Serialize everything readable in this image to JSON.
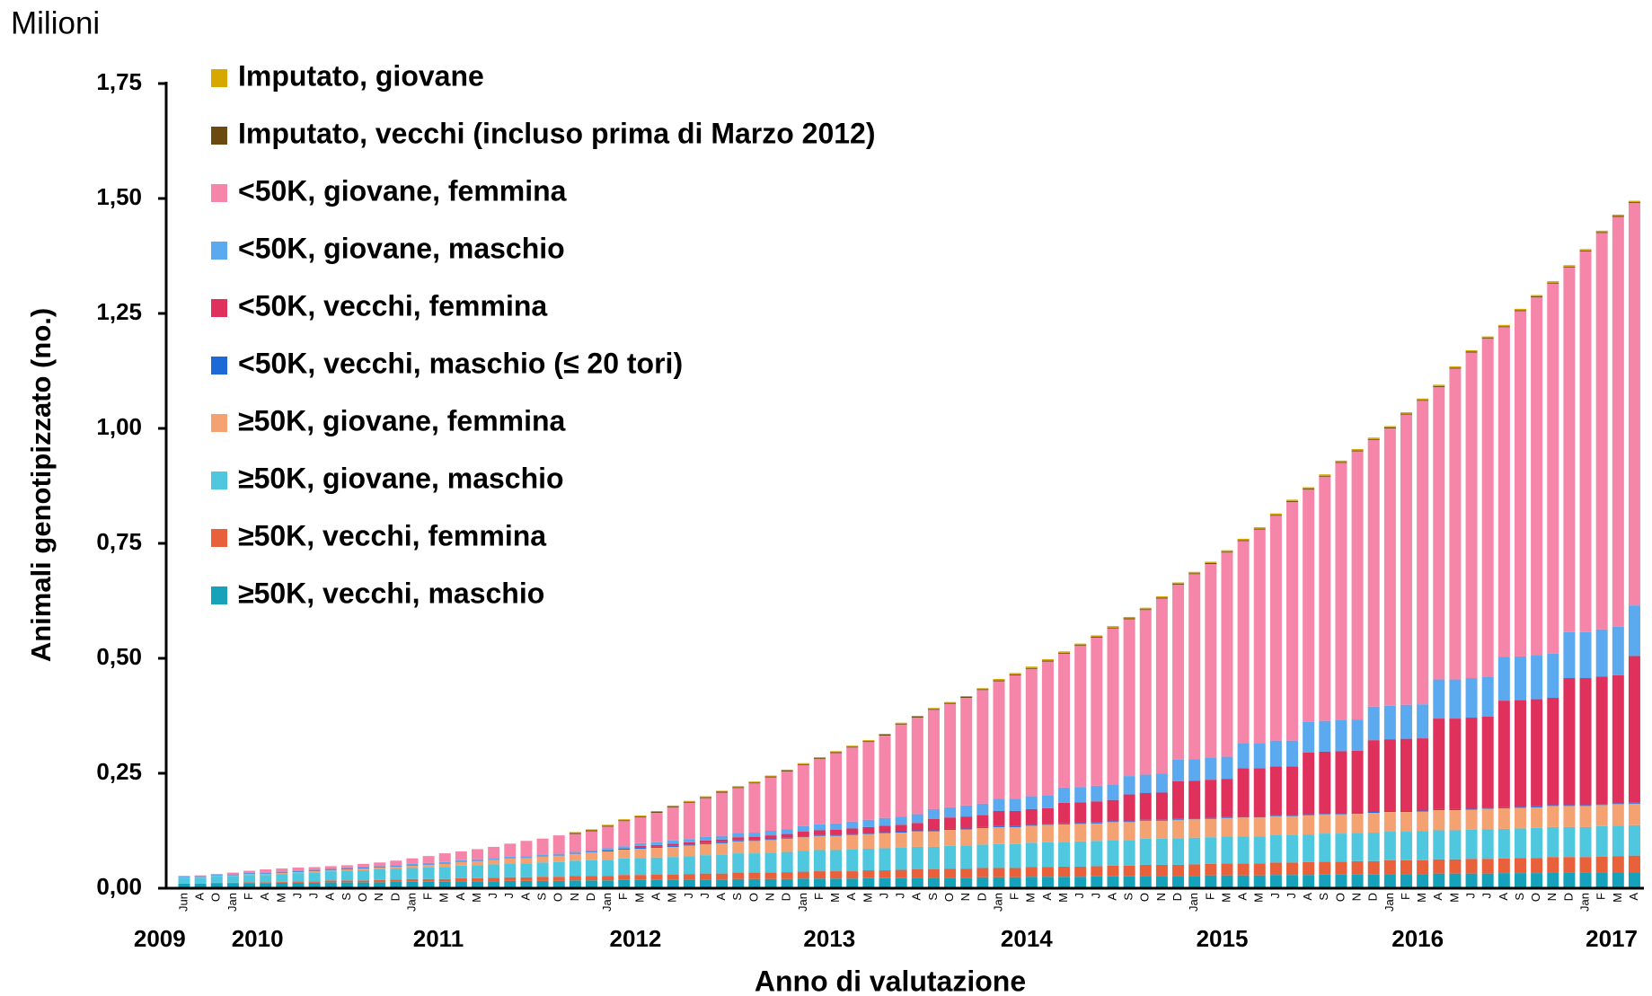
{
  "chart_data": {
    "type": "stacked_bar",
    "unit_label": "Milioni",
    "y_label": "Animali genotipizzato (no.)",
    "x_label": "Anno di valutazione",
    "ylim": [
      0,
      1.75
    ],
    "yticks": [
      {
        "value": 0,
        "label": "0,00"
      },
      {
        "value": 0.25,
        "label": "0,25"
      },
      {
        "value": 0.5,
        "label": "0,50"
      },
      {
        "value": 0.75,
        "label": "0,75"
      },
      {
        "value": 1,
        "label": "1,00"
      },
      {
        "value": 1.25,
        "label": "1,25"
      },
      {
        "value": 1.5,
        "label": "1,50"
      },
      {
        "value": 1.75,
        "label": "1,75"
      }
    ],
    "years": [
      "2009",
      "2010",
      "2011",
      "2012",
      "2013",
      "2014",
      "2015",
      "2016",
      "2017"
    ],
    "categories": [
      "Jun",
      "A",
      "O",
      "Jan",
      "F",
      "A",
      "M",
      "J",
      "J",
      "A",
      "S",
      "O",
      "N",
      "D",
      "Jan",
      "F",
      "M",
      "A",
      "M",
      "J",
      "J",
      "A",
      "S",
      "O",
      "N",
      "D",
      "Jan",
      "F",
      "M",
      "A",
      "M",
      "J",
      "J",
      "A",
      "S",
      "O",
      "N",
      "D",
      "Jan",
      "F",
      "M",
      "A",
      "M",
      "J",
      "J",
      "A",
      "S",
      "O",
      "N",
      "D",
      "Jan",
      "F",
      "M",
      "A",
      "M",
      "J",
      "J",
      "A",
      "S",
      "O",
      "N",
      "D",
      "Jan",
      "F",
      "M",
      "A",
      "M",
      "J",
      "J",
      "A",
      "S",
      "O",
      "N",
      "D",
      "Jan",
      "F",
      "M",
      "A",
      "M",
      "J",
      "J",
      "A",
      "S",
      "O",
      "N",
      "D",
      "Jan",
      "F",
      "M",
      "A"
    ],
    "series": [
      {
        "name": "≥50K, vecchi, maschio",
        "color": "#17a2bb",
        "values": [
          0.01,
          0.01,
          0.011,
          0.011,
          0.011,
          0.011,
          0.012,
          0.012,
          0.012,
          0.013,
          0.013,
          0.013,
          0.013,
          0.014,
          0.014,
          0.014,
          0.014,
          0.015,
          0.015,
          0.015,
          0.016,
          0.016,
          0.016,
          0.016,
          0.017,
          0.017,
          0.017,
          0.018,
          0.018,
          0.018,
          0.018,
          0.019,
          0.019,
          0.019,
          0.02,
          0.02,
          0.02,
          0.02,
          0.021,
          0.021,
          0.021,
          0.021,
          0.022,
          0.022,
          0.022,
          0.023,
          0.023,
          0.023,
          0.023,
          0.024,
          0.024,
          0.024,
          0.025,
          0.025,
          0.025,
          0.025,
          0.026,
          0.026,
          0.026,
          0.027,
          0.027,
          0.027,
          0.027,
          0.028,
          0.028,
          0.028,
          0.028,
          0.029,
          0.029,
          0.029,
          0.03,
          0.03,
          0.03,
          0.03,
          0.031,
          0.031,
          0.031,
          0.032,
          0.032,
          0.032,
          0.032,
          0.033,
          0.033,
          0.033,
          0.034,
          0.034,
          0.034,
          0.034,
          0.035,
          0.035
        ]
      },
      {
        "name": "≥50K, vecchi, femmina",
        "color": "#e8613a",
        "values": [
          0,
          0,
          0.001,
          0.001,
          0.002,
          0.002,
          0.002,
          0.003,
          0.003,
          0.004,
          0.004,
          0.004,
          0.005,
          0.005,
          0.006,
          0.006,
          0.006,
          0.007,
          0.007,
          0.008,
          0.008,
          0.008,
          0.009,
          0.009,
          0.01,
          0.01,
          0.01,
          0.011,
          0.011,
          0.012,
          0.012,
          0.012,
          0.013,
          0.013,
          0.014,
          0.014,
          0.014,
          0.015,
          0.015,
          0.016,
          0.016,
          0.016,
          0.017,
          0.017,
          0.018,
          0.018,
          0.018,
          0.019,
          0.019,
          0.02,
          0.02,
          0.02,
          0.021,
          0.021,
          0.022,
          0.022,
          0.022,
          0.023,
          0.023,
          0.024,
          0.024,
          0.024,
          0.025,
          0.025,
          0.026,
          0.026,
          0.026,
          0.027,
          0.027,
          0.028,
          0.028,
          0.028,
          0.029,
          0.029,
          0.03,
          0.03,
          0.03,
          0.031,
          0.031,
          0.032,
          0.032,
          0.032,
          0.033,
          0.033,
          0.034,
          0.034,
          0.034,
          0.035,
          0.035,
          0.036
        ]
      },
      {
        "name": "≥50K, giovane, maschio",
        "color": "#4ec7df",
        "values": [
          0.012,
          0.013,
          0.014,
          0.015,
          0.016,
          0.016,
          0.017,
          0.018,
          0.019,
          0.02,
          0.021,
          0.022,
          0.023,
          0.023,
          0.024,
          0.025,
          0.026,
          0.027,
          0.028,
          0.029,
          0.03,
          0.03,
          0.031,
          0.032,
          0.033,
          0.034,
          0.035,
          0.036,
          0.037,
          0.037,
          0.038,
          0.039,
          0.04,
          0.041,
          0.042,
          0.042,
          0.043,
          0.044,
          0.045,
          0.046,
          0.046,
          0.047,
          0.047,
          0.048,
          0.048,
          0.049,
          0.049,
          0.05,
          0.051,
          0.051,
          0.052,
          0.052,
          0.053,
          0.054,
          0.054,
          0.055,
          0.055,
          0.056,
          0.056,
          0.057,
          0.057,
          0.058,
          0.058,
          0.058,
          0.059,
          0.059,
          0.059,
          0.06,
          0.06,
          0.06,
          0.061,
          0.061,
          0.061,
          0.062,
          0.062,
          0.062,
          0.063,
          0.063,
          0.063,
          0.063,
          0.064,
          0.064,
          0.064,
          0.065,
          0.065,
          0.065,
          0.065,
          0.066,
          0.066,
          0.066
        ]
      },
      {
        "name": "≥50K, giovane, femmina",
        "color": "#f5a273",
        "values": [
          0.001,
          0.001,
          0.001,
          0.001,
          0.002,
          0.002,
          0.002,
          0.002,
          0.003,
          0.003,
          0.003,
          0.004,
          0.004,
          0.005,
          0.005,
          0.006,
          0.007,
          0.008,
          0.009,
          0.01,
          0.011,
          0.012,
          0.013,
          0.014,
          0.015,
          0.017,
          0.018,
          0.019,
          0.02,
          0.021,
          0.022,
          0.023,
          0.024,
          0.025,
          0.026,
          0.027,
          0.028,
          0.029,
          0.03,
          0.031,
          0.031,
          0.032,
          0.032,
          0.033,
          0.033,
          0.034,
          0.034,
          0.035,
          0.035,
          0.036,
          0.037,
          0.037,
          0.037,
          0.038,
          0.038,
          0.038,
          0.038,
          0.039,
          0.039,
          0.039,
          0.039,
          0.04,
          0.04,
          0.04,
          0.04,
          0.041,
          0.041,
          0.041,
          0.041,
          0.042,
          0.042,
          0.042,
          0.042,
          0.043,
          0.043,
          0.043,
          0.043,
          0.044,
          0.044,
          0.044,
          0.045,
          0.045,
          0.045,
          0.045,
          0.046,
          0.046,
          0.046,
          0.046,
          0.047,
          0.047
        ]
      },
      {
        "name": "<50K, vecchi, maschio (≤ 20 tori)",
        "color": "#1c6ad8",
        "values": [
          0.001,
          0.001,
          0.001,
          0.001,
          0.001,
          0.001,
          0.001,
          0.001,
          0.001,
          0.001,
          0.001,
          0.001,
          0.001,
          0.001,
          0.001,
          0.001,
          0.001,
          0.001,
          0.001,
          0.001,
          0.001,
          0.001,
          0.001,
          0.001,
          0.001,
          0.001,
          0.002,
          0.002,
          0.002,
          0.002,
          0.002,
          0.002,
          0.002,
          0.002,
          0.002,
          0.002,
          0.002,
          0.002,
          0.002,
          0.002,
          0.002,
          0.002,
          0.002,
          0.002,
          0.002,
          0.002,
          0.002,
          0.002,
          0.002,
          0.002,
          0.002,
          0.002,
          0.002,
          0.002,
          0.002,
          0.002,
          0.002,
          0.002,
          0.002,
          0.002,
          0.002,
          0.002,
          0.002,
          0.002,
          0.002,
          0.002,
          0.002,
          0.002,
          0.002,
          0.002,
          0.002,
          0.002,
          0.002,
          0.002,
          0.002,
          0.002,
          0.002,
          0.002,
          0.002,
          0.002,
          0.002,
          0.002,
          0.002,
          0.002,
          0.002,
          0.002,
          0.002,
          0.002,
          0.002,
          0.002
        ]
      },
      {
        "name": "<50K, vecchi, femmina",
        "color": "#e0305c",
        "values": [
          0,
          0,
          0,
          0,
          0,
          0,
          0,
          0,
          0,
          0,
          0,
          0,
          0,
          0,
          0,
          0,
          0,
          0,
          0,
          0,
          0,
          0,
          0,
          0,
          0,
          0,
          0,
          0,
          0.004,
          0.004,
          0.005,
          0.005,
          0.006,
          0.006,
          0.007,
          0.007,
          0.008,
          0.008,
          0.01,
          0.01,
          0.011,
          0.012,
          0.013,
          0.014,
          0.015,
          0.016,
          0.025,
          0.025,
          0.026,
          0.026,
          0.033,
          0.033,
          0.034,
          0.034,
          0.045,
          0.045,
          0.046,
          0.046,
          0.058,
          0.058,
          0.059,
          0.082,
          0.082,
          0.083,
          0.083,
          0.105,
          0.105,
          0.106,
          0.106,
          0.134,
          0.134,
          0.135,
          0.135,
          0.156,
          0.156,
          0.157,
          0.157,
          0.197,
          0.197,
          0.198,
          0.198,
          0.232,
          0.232,
          0.233,
          0.233,
          0.276,
          0.276,
          0.277,
          0.278,
          0.319
        ]
      },
      {
        "name": "<50K, giovane, maschio",
        "color": "#5ba9ef",
        "values": [
          0.002,
          0.002,
          0.002,
          0.002,
          0.002,
          0.002,
          0.002,
          0.002,
          0.002,
          0.002,
          0.002,
          0.002,
          0.002,
          0.002,
          0.003,
          0.003,
          0.003,
          0.003,
          0.003,
          0.003,
          0.003,
          0.003,
          0.003,
          0.003,
          0.003,
          0.003,
          0.005,
          0.005,
          0.006,
          0.006,
          0.007,
          0.007,
          0.008,
          0.008,
          0.009,
          0.009,
          0.01,
          0.01,
          0.012,
          0.013,
          0.014,
          0.015,
          0.016,
          0.017,
          0.018,
          0.019,
          0.021,
          0.022,
          0.024,
          0.025,
          0.027,
          0.027,
          0.028,
          0.028,
          0.033,
          0.033,
          0.034,
          0.034,
          0.04,
          0.04,
          0.041,
          0.047,
          0.047,
          0.048,
          0.048,
          0.055,
          0.055,
          0.056,
          0.056,
          0.067,
          0.067,
          0.068,
          0.068,
          0.073,
          0.073,
          0.074,
          0.074,
          0.085,
          0.085,
          0.086,
          0.086,
          0.095,
          0.095,
          0.096,
          0.096,
          0.1,
          0.1,
          0.103,
          0.106,
          0.11
        ]
      },
      {
        "name": "<50K, giovane, femmina",
        "color": "#f685aa",
        "values": [
          0.001,
          0.001,
          0.001,
          0.003,
          0.004,
          0.007,
          0.007,
          0.007,
          0.006,
          0.005,
          0.006,
          0.007,
          0.008,
          0.01,
          0.012,
          0.015,
          0.019,
          0.019,
          0.022,
          0.024,
          0.028,
          0.033,
          0.035,
          0.04,
          0.039,
          0.042,
          0.047,
          0.055,
          0.056,
          0.064,
          0.072,
          0.079,
          0.084,
          0.094,
          0.098,
          0.107,
          0.116,
          0.126,
          0.133,
          0.142,
          0.153,
          0.161,
          0.169,
          0.179,
          0.2,
          0.21,
          0.216,
          0.225,
          0.234,
          0.247,
          0.255,
          0.268,
          0.277,
          0.291,
          0.291,
          0.307,
          0.322,
          0.339,
          0.341,
          0.358,
          0.381,
          0.38,
          0.402,
          0.421,
          0.444,
          0.439,
          0.464,
          0.489,
          0.519,
          0.505,
          0.531,
          0.559,
          0.583,
          0.58,
          0.603,
          0.631,
          0.66,
          0.636,
          0.676,
          0.708,
          0.736,
          0.717,
          0.751,
          0.778,
          0.805,
          0.793,
          0.828,
          0.862,
          0.891,
          0.875
        ]
      },
      {
        "name": "Imputato, vecchi (incluso prima di Marzo 2012)",
        "color": "#6b4a12",
        "values": [
          0,
          0,
          0,
          0,
          0,
          0,
          0,
          0,
          0,
          0,
          0,
          0,
          0,
          0,
          0,
          0,
          0,
          0,
          0,
          0,
          0,
          0,
          0,
          0,
          0.002,
          0.002,
          0.002,
          0.002,
          0.002,
          0.002,
          0.002,
          0.002,
          0.002,
          0.002,
          0.002,
          0.002,
          0.002,
          0.002,
          0.002,
          0.002,
          0.002,
          0.002,
          0.002,
          0.002,
          0.002,
          0.002,
          0.002,
          0.002,
          0.002,
          0.002,
          0.002,
          0.002,
          0.002,
          0.002,
          0.002,
          0.002,
          0.002,
          0.002,
          0.002,
          0.002,
          0.002,
          0.002,
          0.002,
          0.002,
          0.002,
          0.002,
          0.002,
          0.002,
          0.002,
          0.002,
          0.002,
          0.002,
          0.002,
          0.002,
          0.002,
          0.002,
          0.002,
          0.002,
          0.002,
          0.002,
          0.002,
          0.002,
          0.002,
          0.002,
          0.002,
          0.002,
          0.002,
          0.002,
          0.002,
          0.002
        ]
      },
      {
        "name": "Imputato, giovane",
        "color": "#d6a800",
        "values": [
          0,
          0,
          0,
          0,
          0,
          0,
          0,
          0,
          0,
          0,
          0,
          0,
          0,
          0,
          0,
          0,
          0,
          0,
          0,
          0,
          0,
          0,
          0,
          0,
          0.002,
          0.002,
          0.002,
          0.002,
          0.002,
          0.002,
          0.002,
          0.002,
          0.002,
          0.002,
          0.002,
          0.002,
          0.002,
          0.002,
          0.002,
          0.002,
          0.002,
          0.002,
          0.002,
          0.002,
          0.002,
          0.002,
          0.002,
          0.002,
          0.002,
          0.002,
          0.003,
          0.003,
          0.003,
          0.003,
          0.003,
          0.003,
          0.003,
          0.003,
          0.003,
          0.003,
          0.003,
          0.003,
          0.003,
          0.003,
          0.003,
          0.003,
          0.003,
          0.003,
          0.003,
          0.003,
          0.003,
          0.003,
          0.003,
          0.003,
          0.003,
          0.003,
          0.003,
          0.003,
          0.003,
          0.003,
          0.003,
          0.003,
          0.003,
          0.003,
          0.003,
          0.003,
          0.003,
          0.003,
          0.003,
          0.003
        ]
      }
    ]
  }
}
